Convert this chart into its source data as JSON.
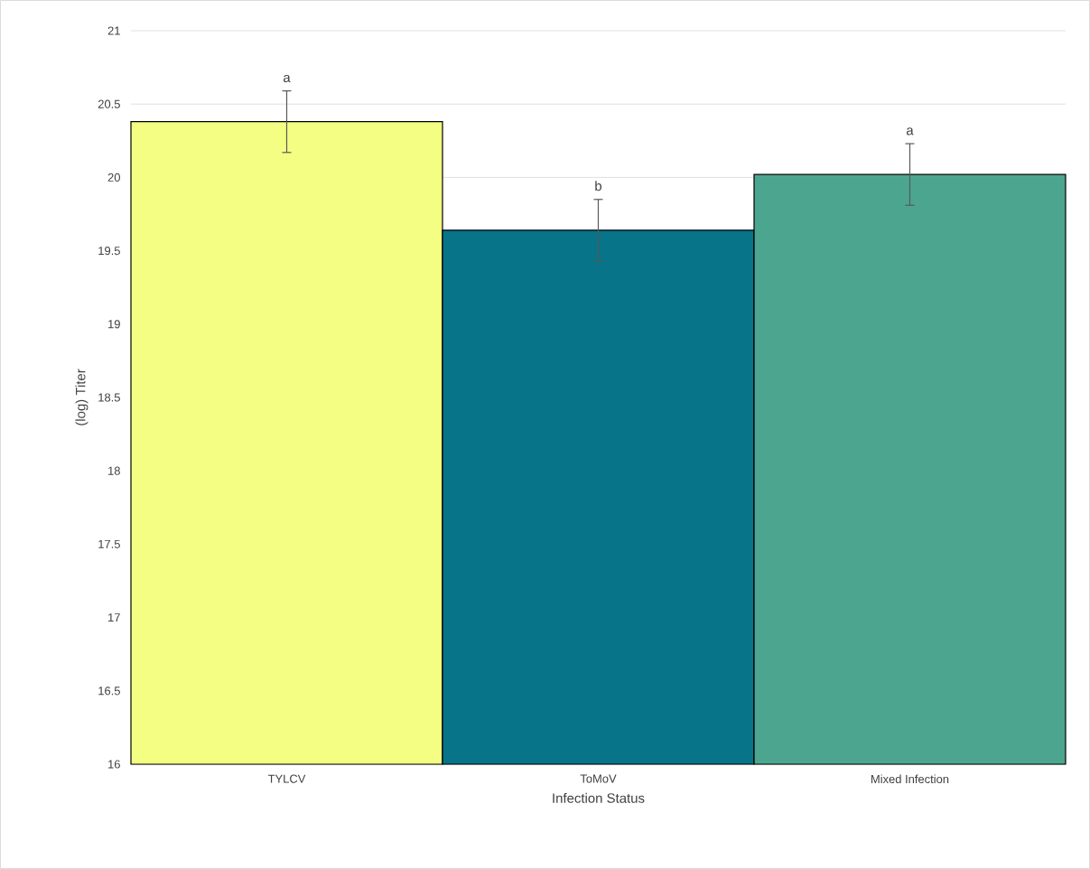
{
  "chart_data": {
    "type": "bar",
    "xlabel": "Infection Status",
    "ylabel": "(log) Titer",
    "categories": [
      "TYLCV",
      "ToMoV",
      "Mixed Infection"
    ],
    "values": [
      20.38,
      19.64,
      20.02
    ],
    "colors": [
      "#f3fe82",
      "#077489",
      "#4ca68f"
    ],
    "errors": [
      0.21,
      0.21,
      0.21
    ],
    "ylim": [
      16,
      21
    ],
    "yticks": [
      16,
      16.5,
      17,
      17.5,
      18,
      18.5,
      19,
      19.5,
      20,
      20.5,
      21
    ],
    "grid": "y",
    "annotations": [
      {
        "text": "a",
        "x": "TYLCV",
        "y": 20.59
      },
      {
        "text": "b",
        "x": "ToMoV",
        "y": 19.85
      },
      {
        "text": "a",
        "x": "Mixed Infection",
        "y": 20.23
      }
    ]
  }
}
